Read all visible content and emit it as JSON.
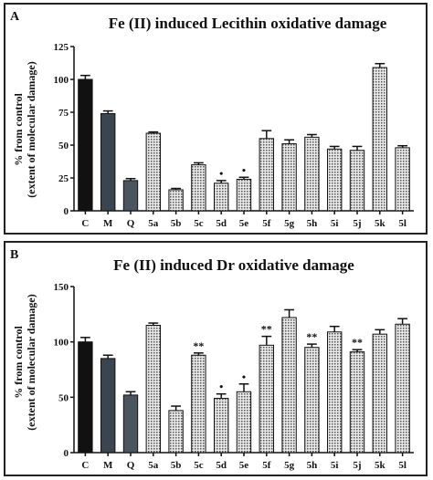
{
  "chart_data": [
    {
      "type": "bar",
      "panel_letter": "A",
      "title": "Fe (II) induced Lecithin oxidative damage",
      "ylabel_line1": "% from control",
      "ylabel_line2": "(extent of molecular damage)",
      "xlabel": "",
      "ylim": [
        0,
        125
      ],
      "yticks": [
        0,
        25,
        50,
        75,
        100,
        125
      ],
      "grid": false,
      "categories": [
        "C",
        "M",
        "Q",
        "5a",
        "5b",
        "5c",
        "5d",
        "5e",
        "5f",
        "5g",
        "5h",
        "5i",
        "5j",
        "5k",
        "5l"
      ],
      "values": [
        100,
        74,
        23,
        59,
        16,
        35,
        21,
        24,
        55,
        51,
        56,
        47,
        46,
        109,
        48
      ],
      "errors": [
        3,
        2,
        1.5,
        1,
        1,
        1.5,
        2,
        1.5,
        6,
        3,
        2,
        2,
        3,
        3,
        1.5
      ],
      "annotations": [
        "",
        "",
        "",
        "",
        "",
        "",
        "•",
        "•",
        "",
        "",
        "",
        "",
        "",
        "",
        ""
      ],
      "fills": [
        "#111111",
        "#3a4550",
        "#4a5560",
        "pattern",
        "pattern",
        "pattern",
        "pattern",
        "pattern",
        "pattern",
        "pattern",
        "pattern",
        "pattern",
        "pattern",
        "pattern",
        "pattern"
      ]
    },
    {
      "type": "bar",
      "panel_letter": "B",
      "title": "Fe (II) induced Dr oxidative damage",
      "ylabel_line1": "% from control",
      "ylabel_line2": "(extent of molecular damage)",
      "xlabel": "",
      "ylim": [
        0,
        150
      ],
      "yticks": [
        0,
        50,
        100,
        150
      ],
      "grid": false,
      "categories": [
        "C",
        "M",
        "Q",
        "5a",
        "5b",
        "5c",
        "5d",
        "5e",
        "5f",
        "5g",
        "5h",
        "5i",
        "5j",
        "5k",
        "5l"
      ],
      "values": [
        100,
        85,
        52,
        115,
        38,
        88,
        49,
        55,
        97,
        122,
        95,
        109,
        91,
        107,
        116
      ],
      "errors": [
        4,
        3,
        3,
        2,
        4,
        2,
        4,
        7,
        8,
        7,
        3,
        5,
        2,
        4,
        5
      ],
      "annotations": [
        "",
        "",
        "",
        "",
        "",
        "**",
        "•",
        "•",
        "**",
        "",
        "**",
        "",
        "**",
        "",
        ""
      ],
      "fills": [
        "#111111",
        "#3a4550",
        "#4a5560",
        "pattern",
        "pattern",
        "pattern",
        "pattern",
        "pattern",
        "pattern",
        "pattern",
        "pattern",
        "pattern",
        "pattern",
        "pattern",
        "pattern"
      ]
    }
  ]
}
